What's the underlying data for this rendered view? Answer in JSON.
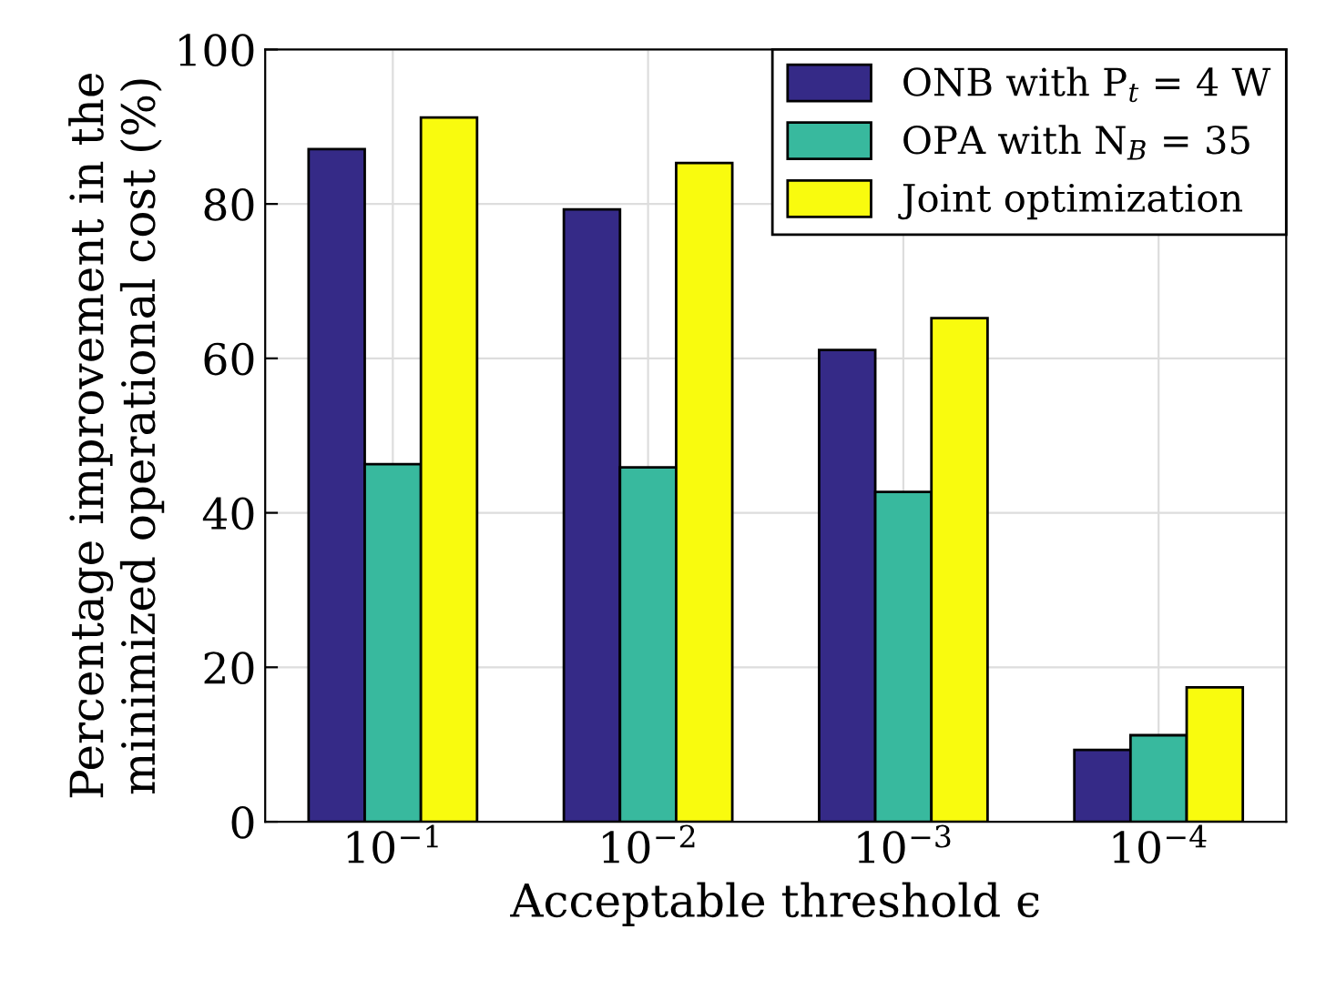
{
  "chart_data": {
    "type": "bar",
    "categories": [
      "10$^{−1}$",
      "10$^{−2}$",
      "10$^{−3}$",
      "10$^{−4}$"
    ],
    "series": [
      {
        "name": "ONB with P$_{t}$ = 4 W",
        "color": "#352a87",
        "values": [
          87.1,
          79.3,
          61.1,
          9.3
        ]
      },
      {
        "name": "OPA with N$_{B}$ = 35",
        "color": "#38b99e",
        "values": [
          46.3,
          45.9,
          42.7,
          11.2
        ]
      },
      {
        "name": "Joint optimization",
        "color": "#f9fb0e",
        "values": [
          91.2,
          85.3,
          65.2,
          17.4
        ]
      }
    ],
    "xlabel": "Acceptable threshold ϵ",
    "ylabel": "Percentage improvement in the\nminimized operational cost (%)",
    "ylim": [
      0,
      100
    ],
    "yticks": [
      0,
      20,
      40,
      60,
      80,
      100
    ],
    "grid": true,
    "legend": "top right"
  }
}
